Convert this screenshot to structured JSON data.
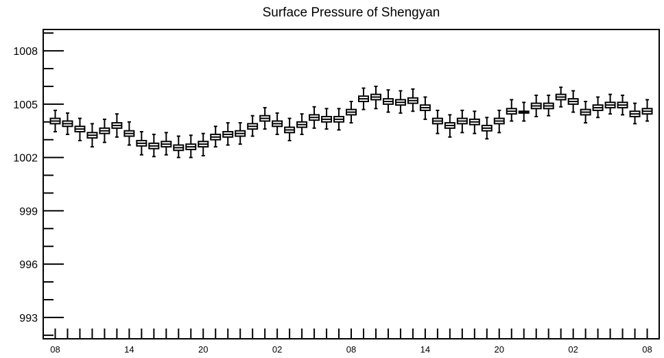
{
  "chart_data": {
    "type": "box",
    "title": "Surface Pressure of Shengyan",
    "xlabel": "",
    "ylabel": "",
    "ylim": [
      991.8,
      1009.2
    ],
    "yticks": [
      993,
      996,
      999,
      1002,
      1005,
      1008
    ],
    "x_tick_labels": [
      "08",
      "14",
      "20",
      "02",
      "08",
      "14",
      "20",
      "02",
      "08"
    ],
    "grid": false,
    "box_color": "#000000",
    "series": [
      {
        "median": [
          1004.05,
          1003.9,
          1003.6,
          1003.25,
          1003.5,
          1003.8,
          1003.35,
          1002.8,
          1002.65,
          1002.75,
          1002.55,
          1002.6,
          1002.75,
          1003.15,
          1003.3,
          1003.35,
          1003.75,
          1004.2,
          1003.9,
          1003.55,
          1003.85,
          1004.25,
          1004.15,
          1004.15,
          1004.55,
          1005.3,
          1005.4,
          1005.15,
          1005.1,
          1005.2,
          1004.8,
          1004.05,
          1003.8,
          1004.05,
          1004.0,
          1003.65,
          1004.05,
          1004.6,
          1004.55,
          1004.9,
          1004.9,
          1005.4,
          1005.15,
          1004.55,
          1004.8,
          1004.95,
          1004.95,
          1004.45,
          1004.6
        ],
        "q1": [
          1003.9,
          1003.75,
          1003.45,
          1003.1,
          1003.35,
          1003.65,
          1003.2,
          1002.65,
          1002.5,
          1002.6,
          1002.4,
          1002.45,
          1002.6,
          1003.0,
          1003.15,
          1003.2,
          1003.6,
          1004.05,
          1003.75,
          1003.4,
          1003.7,
          1004.1,
          1004.0,
          1004.0,
          1004.4,
          1005.15,
          1005.25,
          1005.0,
          1004.95,
          1005.05,
          1004.65,
          1003.9,
          1003.65,
          1003.9,
          1003.85,
          1003.5,
          1003.9,
          1004.45,
          1004.5,
          1004.75,
          1004.75,
          1005.25,
          1005.0,
          1004.4,
          1004.65,
          1004.8,
          1004.8,
          1004.3,
          1004.45
        ],
        "q3": [
          1004.2,
          1004.05,
          1003.75,
          1003.4,
          1003.65,
          1003.95,
          1003.5,
          1002.95,
          1002.8,
          1002.9,
          1002.7,
          1002.75,
          1002.9,
          1003.3,
          1003.45,
          1003.5,
          1003.9,
          1004.35,
          1004.05,
          1003.7,
          1004.0,
          1004.4,
          1004.3,
          1004.3,
          1004.7,
          1005.45,
          1005.55,
          1005.3,
          1005.25,
          1005.35,
          1004.95,
          1004.2,
          1003.95,
          1004.2,
          1004.15,
          1003.8,
          1004.2,
          1004.75,
          1004.6,
          1005.05,
          1005.05,
          1005.55,
          1005.3,
          1004.7,
          1004.95,
          1005.1,
          1005.1,
          1004.6,
          1004.75
        ],
        "min": [
          1003.45,
          1003.3,
          1002.95,
          1002.6,
          1002.85,
          1003.15,
          1002.7,
          1002.15,
          1002.05,
          1002.15,
          1002.0,
          1002.0,
          1002.1,
          1002.6,
          1002.7,
          1002.75,
          1003.2,
          1003.6,
          1003.3,
          1002.95,
          1003.3,
          1003.65,
          1003.6,
          1003.55,
          1003.95,
          1004.7,
          1004.75,
          1004.55,
          1004.5,
          1004.6,
          1004.15,
          1003.35,
          1003.15,
          1003.4,
          1003.35,
          1003.05,
          1003.4,
          1004.05,
          1004.05,
          1004.3,
          1004.35,
          1004.85,
          1004.55,
          1003.95,
          1004.25,
          1004.45,
          1004.4,
          1003.9,
          1004.05
        ],
        "max": [
          1004.65,
          1004.5,
          1004.2,
          1003.9,
          1004.15,
          1004.45,
          1004.0,
          1003.45,
          1003.3,
          1003.4,
          1003.2,
          1003.25,
          1003.35,
          1003.75,
          1003.95,
          1003.95,
          1004.35,
          1004.8,
          1004.5,
          1004.2,
          1004.45,
          1004.85,
          1004.75,
          1004.75,
          1005.15,
          1005.9,
          1006.0,
          1005.8,
          1005.75,
          1005.85,
          1005.4,
          1004.65,
          1004.4,
          1004.65,
          1004.6,
          1004.25,
          1004.65,
          1005.25,
          1005.1,
          1005.5,
          1005.5,
          1005.95,
          1005.75,
          1005.15,
          1005.4,
          1005.55,
          1005.5,
          1005.05,
          1005.25
        ]
      }
    ]
  }
}
